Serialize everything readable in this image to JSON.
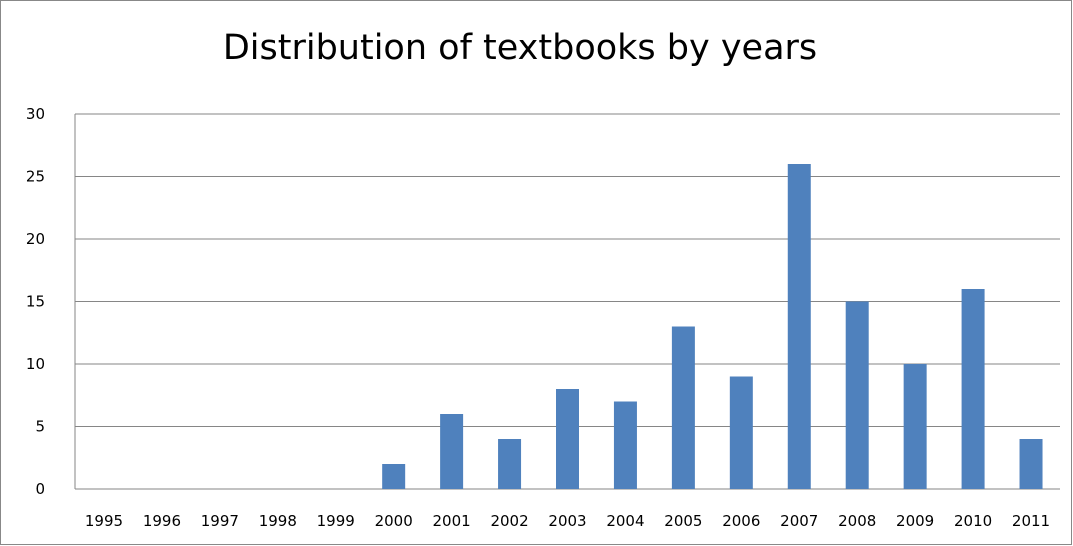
{
  "chart_data": {
    "type": "bar",
    "title": "Distribution of textbooks by years",
    "xlabel": "",
    "ylabel": "",
    "categories": [
      "1995",
      "1996",
      "1997",
      "1998",
      "1999",
      "2000",
      "2001",
      "2002",
      "2003",
      "2004",
      "2005",
      "2006",
      "2007",
      "2008",
      "2009",
      "2010",
      "2011"
    ],
    "values": [
      0,
      0,
      0,
      0,
      0,
      2,
      6,
      4,
      8,
      7,
      13,
      9,
      26,
      15,
      10,
      16,
      4
    ],
    "ylim": [
      0,
      30
    ],
    "yticks": [
      "0",
      "5",
      "10",
      "15",
      "20",
      "25",
      "30"
    ],
    "grid": true,
    "legend": "none",
    "colors": {
      "bar": "#4f81bd",
      "grid": "#868686",
      "axis": "#868686"
    }
  }
}
